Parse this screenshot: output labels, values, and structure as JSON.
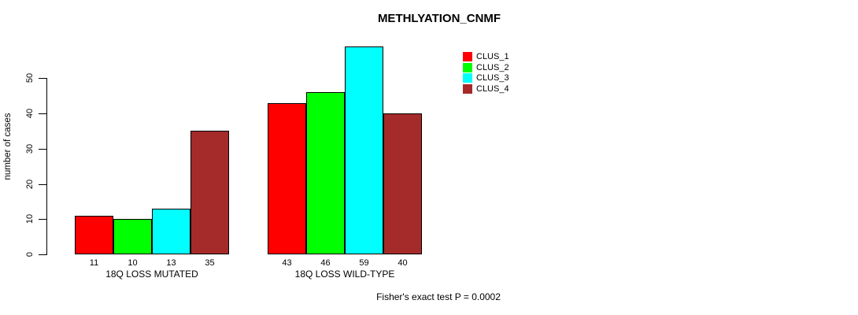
{
  "chart_data": {
    "type": "bar",
    "title": "METHLYATION_CNMF",
    "ylabel": "number of cases",
    "yticks": [
      0,
      10,
      20,
      30,
      40,
      50
    ],
    "ylim": [
      0,
      59
    ],
    "grid": false,
    "legend_position": "top-right",
    "categories": [
      "18Q LOSS MUTATED",
      "18Q LOSS WILD-TYPE"
    ],
    "series": [
      {
        "name": "CLUS_1",
        "color": "#ff0000",
        "values": [
          11,
          43
        ]
      },
      {
        "name": "CLUS_2",
        "color": "#00ff00",
        "values": [
          10,
          46
        ]
      },
      {
        "name": "CLUS_3",
        "color": "#00ffff",
        "values": [
          13,
          59
        ]
      },
      {
        "name": "CLUS_4",
        "color": "#a52a2a",
        "values": [
          35,
          40
        ]
      }
    ],
    "bar_value_labels": [
      [
        11,
        10,
        13,
        35
      ],
      [
        43,
        46,
        59,
        40
      ]
    ],
    "annotation": "Fisher's exact test P = 0.0002"
  }
}
